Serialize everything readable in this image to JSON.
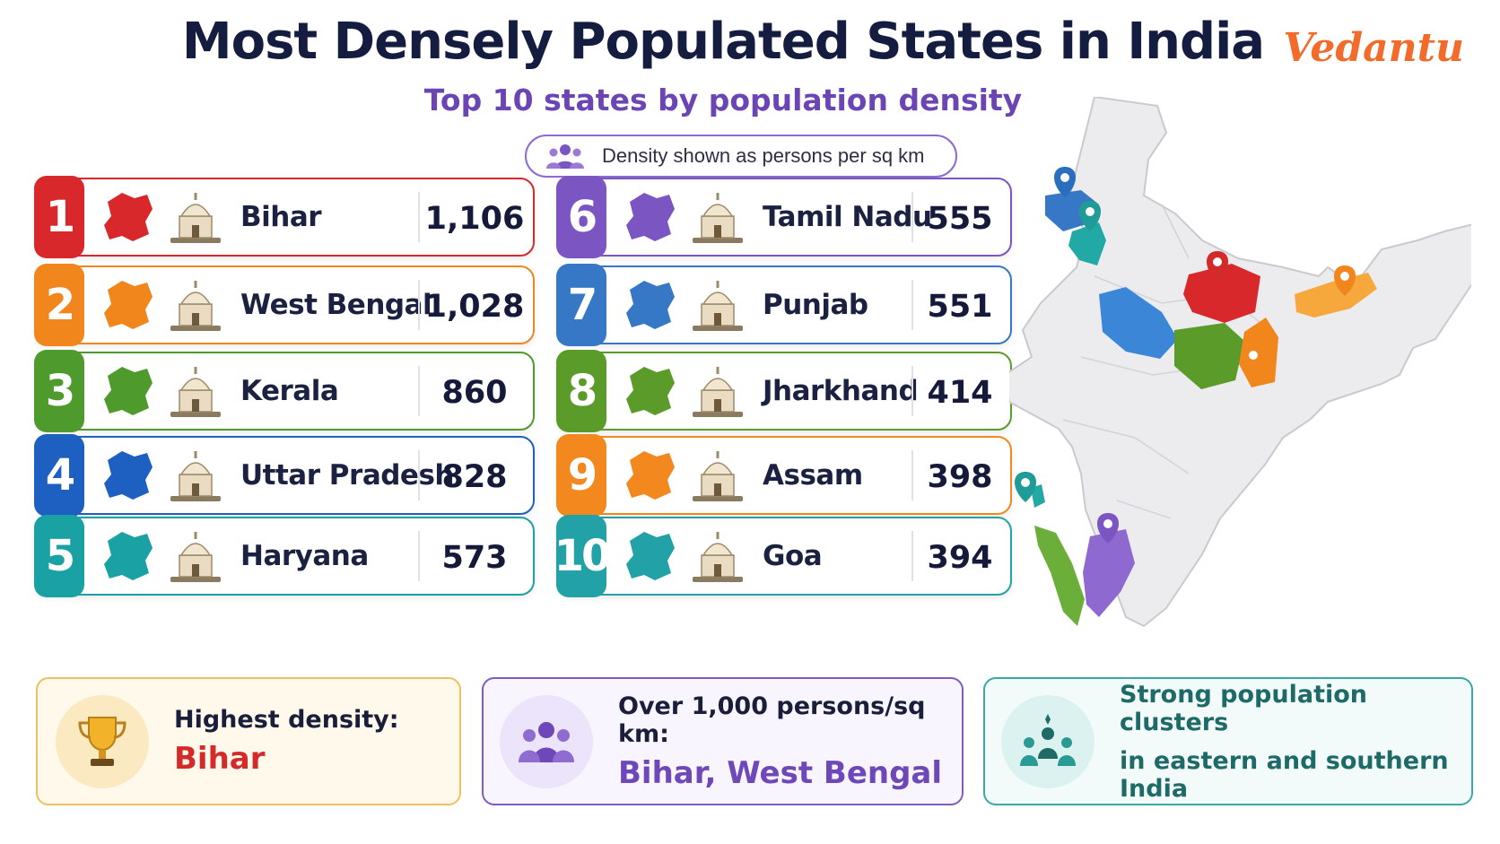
{
  "header": {
    "title": "Most Densely Populated States in India",
    "subtitle": "Top 10 states by population density",
    "logo": "Vedantu",
    "note": "Density shown as persons per sq km"
  },
  "colors": {
    "title": "#141c3f",
    "subtitle": "#6c45b4",
    "logo": "#f26b2a"
  },
  "states": [
    {
      "rank": "1",
      "name": "Bihar",
      "value": "1,106",
      "color": "#d9282c",
      "landmark": "stupa-icon"
    },
    {
      "rank": "2",
      "name": "West Bengal",
      "value": "1,028",
      "color": "#f0861c",
      "landmark": "victoria-memorial-icon"
    },
    {
      "rank": "3",
      "name": "Kerala",
      "value": "860",
      "color": "#4f9a2c",
      "landmark": "houseboat-icon"
    },
    {
      "rank": "4",
      "name": "Uttar Pradesh",
      "value": "828",
      "color": "#1e5fc2",
      "landmark": "taj-mahal-icon"
    },
    {
      "rank": "5",
      "name": "Haryana",
      "value": "573",
      "color": "#1aa1a3",
      "landmark": "gateway-arch-icon"
    },
    {
      "rank": "6",
      "name": "Tamil Nadu",
      "value": "555",
      "color": "#7b56c2",
      "landmark": "temple-gopuram-icon"
    },
    {
      "rank": "7",
      "name": "Punjab",
      "value": "551",
      "color": "#3778c6",
      "landmark": "golden-temple-icon"
    },
    {
      "rank": "8",
      "name": "Jharkhand",
      "value": "414",
      "color": "#5a9b2a",
      "landmark": "waterfall-icon"
    },
    {
      "rank": "9",
      "name": "Assam",
      "value": "398",
      "color": "#f2881e",
      "landmark": "rhino-icon"
    },
    {
      "rank": "10",
      "name": "Goa",
      "value": "394",
      "color": "#22a2a6",
      "landmark": "church-icon"
    }
  ],
  "facts": [
    {
      "line1": "Highest density:",
      "line2": "Bihar",
      "line2_color": "#d42a2a",
      "icon": "trophy-icon"
    },
    {
      "line1": "Over 1,000 persons/sq km:",
      "line2": "Bihar, West Bengal",
      "line2_color": "#6e47b8",
      "icon": "group-icon"
    },
    {
      "line1": "Strong population clusters",
      "line2": "in eastern and southern India",
      "line2_color": "#1d6a67",
      "icon": "cluster-icon"
    }
  ]
}
